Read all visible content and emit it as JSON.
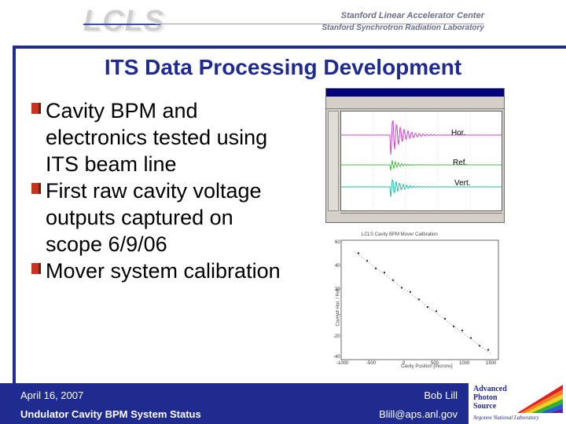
{
  "header": {
    "logo_text": "LCLS",
    "line1": "Stanford Linear Accelerator Center",
    "line2": "Stanford Synchrotron Radiation Laboratory"
  },
  "slide": {
    "title": "ITS Data Processing Development",
    "bullets": [
      "Cavity BPM and electronics tested using ITS beam line",
      "First raw cavity voltage outputs captured on scope 6/9/06",
      "Mover system calibration"
    ]
  },
  "scope": {
    "labels": {
      "hor": "Hor.",
      "ref": "Ref.",
      "vert": "Vert."
    },
    "trace_colors": {
      "hor": "#d040d0",
      "ref": "#40c040",
      "vert": "#20c0a0"
    }
  },
  "calibration_plot": {
    "title": "LCLS Cavity BPM Mover Calibration",
    "xlabel": "Cavity Position [microns]",
    "ylabel": "Cavity * Hor. / Ref.",
    "y_ticks": [
      "60",
      "40",
      "20",
      "0",
      "-20",
      "-40"
    ],
    "x_ticks": [
      "-1000",
      "-500",
      "0",
      "500",
      "1000",
      "1500"
    ]
  },
  "footer": {
    "date": "April 16, 2007",
    "talk_title": "Undulator Cavity BPM System Status",
    "author": "Bob Lill",
    "email": "Blill@aps.anl.gov"
  },
  "aps_logo": {
    "line1": "Advanced",
    "line2": "Photon",
    "line3": "Source",
    "line4": "Argonne National Laboratory"
  }
}
